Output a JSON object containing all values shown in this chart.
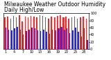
{
  "title": "Milwaukee Weather Outdoor Humidity",
  "subtitle": "Daily High/Low",
  "high_values": [
    88,
    90,
    85,
    92,
    88,
    95,
    78,
    90,
    88,
    92,
    90,
    88,
    95,
    92,
    88,
    85,
    90,
    88,
    92,
    95,
    88,
    90,
    85,
    88,
    90,
    85,
    88,
    90,
    85
  ],
  "low_values": [
    60,
    55,
    52,
    58,
    62,
    55,
    40,
    50,
    55,
    60,
    58,
    52,
    50,
    55,
    48,
    42,
    55,
    52,
    58,
    62,
    55,
    58,
    45,
    52,
    60,
    48,
    35,
    58,
    25
  ],
  "bar_width": 0.35,
  "high_color": "#ff2222",
  "low_color": "#2222ff",
  "background_color": "#ffffff",
  "ylim": [
    0,
    100
  ],
  "yticks": [
    0,
    20,
    40,
    60,
    80,
    100
  ],
  "title_fontsize": 5.5,
  "tick_fontsize": 3.5,
  "dotted_bar_indices": [
    17,
    18,
    19,
    20
  ],
  "labels": [
    "1",
    "2",
    "3",
    "4",
    "5",
    "6",
    "7",
    "8",
    "9",
    "10",
    "11",
    "12",
    "13",
    "14",
    "15",
    "16",
    "17",
    "18",
    "19",
    "20",
    "21",
    "22",
    "23",
    "24",
    "25",
    "26",
    "27",
    "28",
    "29"
  ]
}
